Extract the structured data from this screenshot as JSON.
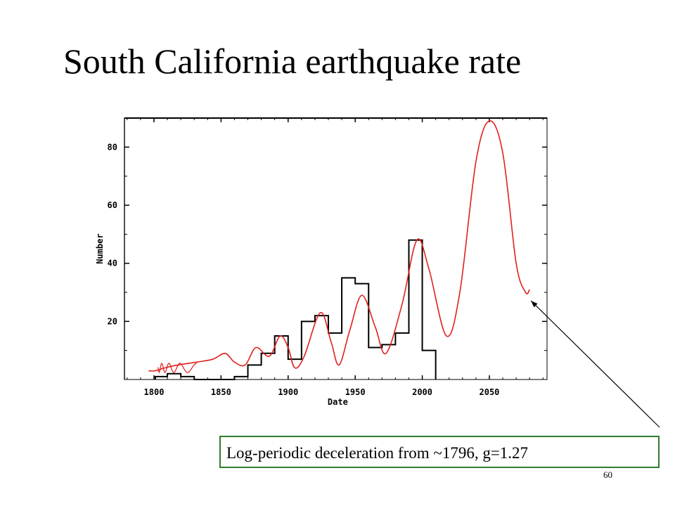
{
  "slide": {
    "title": "South California earthquake rate",
    "annotation": "Log-periodic deceleration from ~1796, g=1.27",
    "page_number": "60"
  },
  "colors": {
    "observed": "#000000",
    "fit": "#e0201e",
    "annotation_border": "#2f7d2f"
  },
  "chart_data": {
    "type": "line",
    "xlabel": "Date",
    "ylabel": "Number",
    "xlim": [
      1778,
      2093
    ],
    "ylim": [
      0,
      90
    ],
    "x_ticks": [
      1800,
      1850,
      1900,
      1950,
      2000,
      2050
    ],
    "y_ticks": [
      20,
      40,
      60,
      80
    ],
    "observed_steps": {
      "style": "step histogram",
      "segments": [
        {
          "x0": 1801,
          "x1": 1810,
          "y": 1
        },
        {
          "x0": 1810,
          "x1": 1820,
          "y": 2
        },
        {
          "x0": 1820,
          "x1": 1830,
          "y": 1
        },
        {
          "x0": 1830,
          "x1": 1860,
          "y": 0
        },
        {
          "x0": 1860,
          "x1": 1870,
          "y": 1
        },
        {
          "x0": 1870,
          "x1": 1880,
          "y": 5
        },
        {
          "x0": 1880,
          "x1": 1890,
          "y": 9
        },
        {
          "x0": 1890,
          "x1": 1900,
          "y": 15
        },
        {
          "x0": 1900,
          "x1": 1910,
          "y": 7
        },
        {
          "x0": 1910,
          "x1": 1920,
          "y": 20
        },
        {
          "x0": 1920,
          "x1": 1930,
          "y": 22
        },
        {
          "x0": 1930,
          "x1": 1940,
          "y": 16
        },
        {
          "x0": 1940,
          "x1": 1950,
          "y": 35
        },
        {
          "x0": 1950,
          "x1": 1960,
          "y": 33
        },
        {
          "x0": 1960,
          "x1": 1970,
          "y": 11
        },
        {
          "x0": 1970,
          "x1": 1980,
          "y": 12
        },
        {
          "x0": 1980,
          "x1": 1990,
          "y": 16
        },
        {
          "x0": 1990,
          "x1": 2000,
          "y": 48
        },
        {
          "x0": 2000,
          "x1": 2010,
          "y": 10
        }
      ]
    },
    "fit_curve": {
      "style": "log-periodic oscillation",
      "points": [
        [
          1796,
          3
        ],
        [
          1801,
          3
        ],
        [
          1808,
          4
        ],
        [
          1818,
          5
        ],
        [
          1832,
          6
        ],
        [
          1844,
          7
        ],
        [
          1853,
          9
        ],
        [
          1860,
          6
        ],
        [
          1868,
          5
        ],
        [
          1876,
          11
        ],
        [
          1886,
          8
        ],
        [
          1894,
          15
        ],
        [
          1900,
          11
        ],
        [
          1905,
          4
        ],
        [
          1912,
          8
        ],
        [
          1924,
          23
        ],
        [
          1932,
          13
        ],
        [
          1938,
          5
        ],
        [
          1946,
          17
        ],
        [
          1955,
          29
        ],
        [
          1965,
          18
        ],
        [
          1973,
          9
        ],
        [
          1985,
          26
        ],
        [
          1996,
          48
        ],
        [
          2005,
          38
        ],
        [
          2018,
          15
        ],
        [
          2028,
          30
        ],
        [
          2040,
          75
        ],
        [
          2050,
          89
        ],
        [
          2060,
          78
        ],
        [
          2070,
          40
        ],
        [
          2077,
          30
        ],
        [
          2080,
          31
        ]
      ]
    }
  }
}
